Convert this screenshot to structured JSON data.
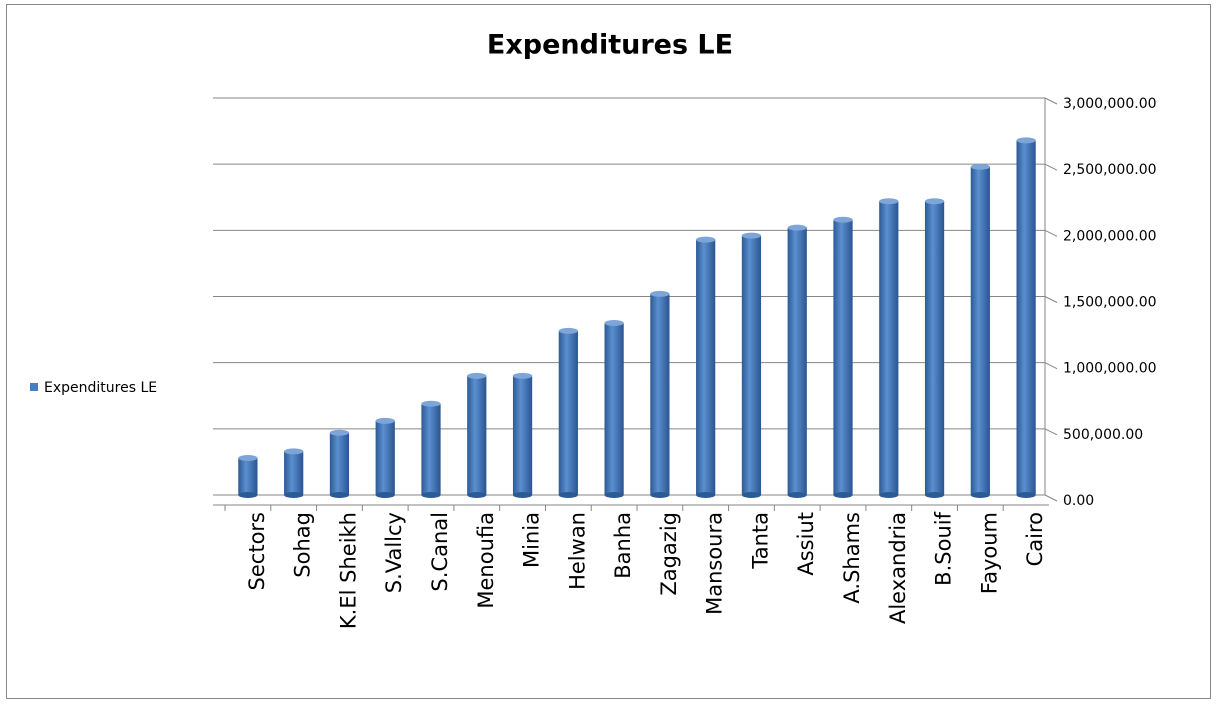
{
  "chart_data": {
    "type": "bar",
    "title": "Expenditures LE",
    "categories": [
      "Sectors",
      "Sohag",
      "K.El Sheikh",
      "S.Vallcy",
      "S.Canal",
      "Menoufia",
      "Minia",
      "Helwan",
      "Banha",
      "Zagazig",
      "Mansoura",
      "Tanta",
      "Assiut",
      "A.Shams",
      "Alexandria",
      "B.Souif",
      "Fayoum",
      "Cairo"
    ],
    "series": [
      {
        "name": "Expenditures LE",
        "color": "#4a7ebb",
        "values": [
          280000,
          330000,
          470000,
          560000,
          690000,
          900000,
          900000,
          1240000,
          1300000,
          1520000,
          1930000,
          1960000,
          2020000,
          2080000,
          2220000,
          2220000,
          2480000,
          2680000
        ]
      }
    ],
    "ylim": [
      0,
      3000000
    ],
    "yticks": [
      {
        "value": 0,
        "label": "0.00"
      },
      {
        "value": 500000,
        "label": "500,000.00"
      },
      {
        "value": 1000000,
        "label": "1,000,000.00"
      },
      {
        "value": 1500000,
        "label": "1,500,000.00"
      },
      {
        "value": 2000000,
        "label": "2,000,000.00"
      },
      {
        "value": 2500000,
        "label": "2,500,000.00"
      },
      {
        "value": 3000000,
        "label": "3,000,000.00"
      }
    ],
    "grid": true,
    "legend": "left"
  }
}
